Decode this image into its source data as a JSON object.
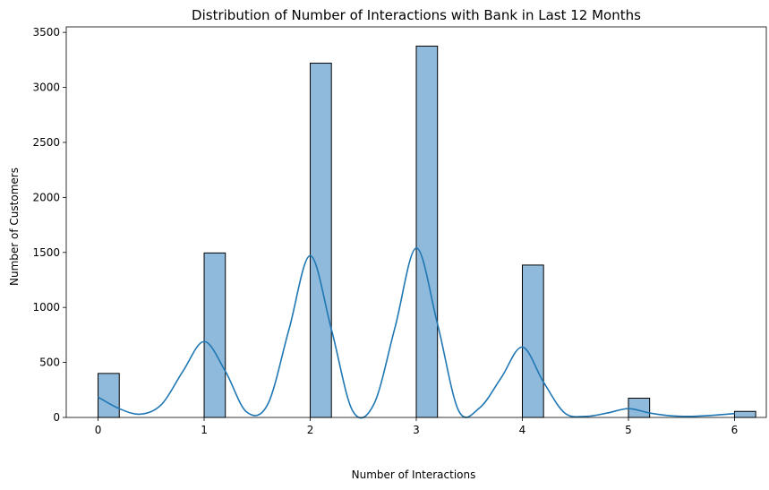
{
  "chart_data": {
    "type": "bar",
    "title": "Distribution of Number of Interactions with Bank in Last 12 Months",
    "xlabel": "Number of Interactions",
    "ylabel": "Number of Customers",
    "xlim": [
      -0.3,
      6.3
    ],
    "ylim": [
      0,
      3550
    ],
    "xticks": [
      0,
      1,
      2,
      3,
      4,
      5,
      6
    ],
    "yticks": [
      0,
      500,
      1000,
      1500,
      2000,
      2500,
      3000,
      3500
    ],
    "bin_width": 0.2,
    "bars": [
      {
        "x": 0,
        "value": 400
      },
      {
        "x": 1,
        "value": 1495
      },
      {
        "x": 2,
        "value": 3220
      },
      {
        "x": 3,
        "value": 3375
      },
      {
        "x": 4,
        "value": 1385
      },
      {
        "x": 5,
        "value": 175
      },
      {
        "x": 6,
        "value": 55
      }
    ],
    "kde": {
      "x": [
        0,
        0.2,
        0.4,
        0.6,
        0.8,
        1.0,
        1.2,
        1.4,
        1.6,
        1.8,
        2.0,
        2.2,
        2.4,
        2.6,
        2.8,
        3.0,
        3.2,
        3.4,
        3.6,
        3.8,
        4.0,
        4.2,
        4.4,
        4.6,
        4.8,
        5.0,
        5.2,
        5.4,
        5.6,
        5.8,
        6.0
      ],
      "y": [
        185,
        80,
        30,
        120,
        420,
        690,
        420,
        50,
        120,
        800,
        1470,
        800,
        60,
        120,
        820,
        1540,
        850,
        60,
        90,
        360,
        640,
        320,
        40,
        10,
        40,
        80,
        40,
        15,
        10,
        20,
        35
      ]
    },
    "bar_fill": "#8fbadc",
    "bar_edge": "#000000",
    "line_color": "#1f77b4",
    "grid": false,
    "legend": false
  }
}
